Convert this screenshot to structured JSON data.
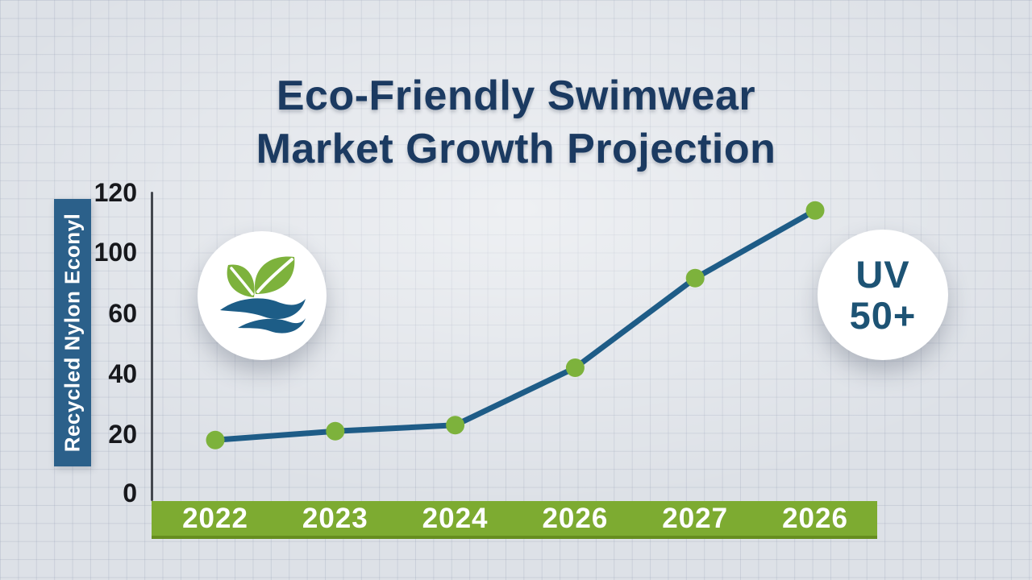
{
  "title": {
    "line1": "Eco-Friendly Swimwear",
    "line2": "Market Growth Projection"
  },
  "uv_badge": {
    "line1": "UV",
    "line2": "50+"
  },
  "logo_badge": {
    "icon": "leaf-and-waves-icon"
  },
  "colors": {
    "title_text": "#1b3a61",
    "line": "#1e5c87",
    "dot": "#7db23c",
    "band": "#7dab31",
    "band_text": "#ffffff",
    "ylabel_box": "#2b608a",
    "ylabel_text": "#ffffff",
    "tick_text": "#17181c",
    "uv_text": "#1d5374",
    "background": "#dde1e7"
  },
  "chart_data": {
    "type": "line",
    "title": "Eco-Friendly Swimwear Market Growth Projection",
    "categories": [
      "2022",
      "2023",
      "2024",
      "2026",
      "2027",
      "2026"
    ],
    "values": [
      18,
      21,
      23,
      42,
      83,
      114
    ],
    "ylabel": "Recycled Nylon Econyl",
    "xlabel": "",
    "y_ticks": [
      "120",
      "100",
      "60",
      "40",
      "20",
      "0"
    ],
    "y_tick_values": [
      120,
      100,
      60,
      40,
      20,
      0
    ],
    "ylim": [
      0,
      120
    ],
    "grid": "on (graph-paper background)",
    "legend": "none"
  }
}
